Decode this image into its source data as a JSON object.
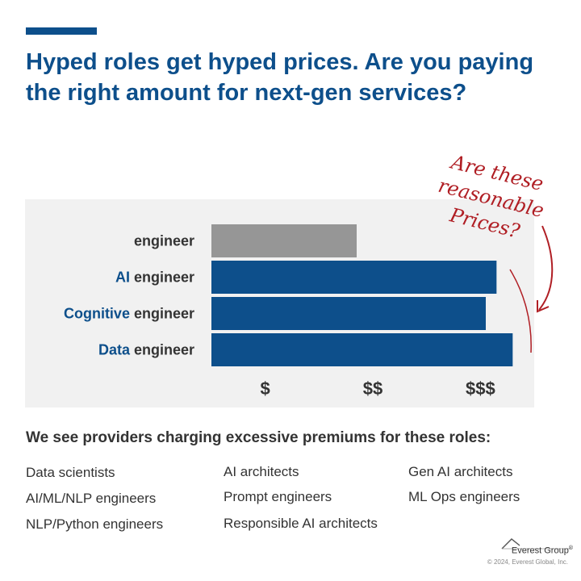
{
  "title": "Hyped roles get hyped prices. Are you paying the right amount for next-gen services?",
  "annotation": [
    "Are these",
    "reasonable",
    "Prices?"
  ],
  "subtitle": "We see providers charging excessive premiums for these roles:",
  "roles": [
    [
      "Data scientists",
      "AI/ML/NLP engineers",
      "NLP/Python engineers"
    ],
    [
      "AI architects",
      "Prompt engineers",
      "Responsible AI architects"
    ],
    [
      "Gen AI architects",
      "ML Ops engineers"
    ]
  ],
  "logo": {
    "name": "Everest Group",
    "mark": "®"
  },
  "copyright": "© 2024, Everest Global, Inc.",
  "colors": {
    "brand": "#0d4f8b",
    "baseline": "#969696",
    "annotation": "#b01e24",
    "text": "#333333",
    "panel": "#f1f1f1"
  },
  "chart_data": {
    "type": "bar",
    "orientation": "horizontal",
    "categories": [
      {
        "highlight": "",
        "rest": "engineer"
      },
      {
        "highlight": "AI",
        "rest": " engineer"
      },
      {
        "highlight": "Cognitive",
        "rest": " engineer"
      },
      {
        "highlight": "Data",
        "rest": " engineer"
      }
    ],
    "values": [
      1.85,
      3.15,
      3.05,
      3.3
    ],
    "x_ticks": [
      {
        "value": 1,
        "label": "$"
      },
      {
        "value": 2,
        "label": "$$"
      },
      {
        "value": 3,
        "label": "$$$"
      }
    ],
    "xlim": [
      0.5,
      3.5
    ],
    "grid": false
  }
}
